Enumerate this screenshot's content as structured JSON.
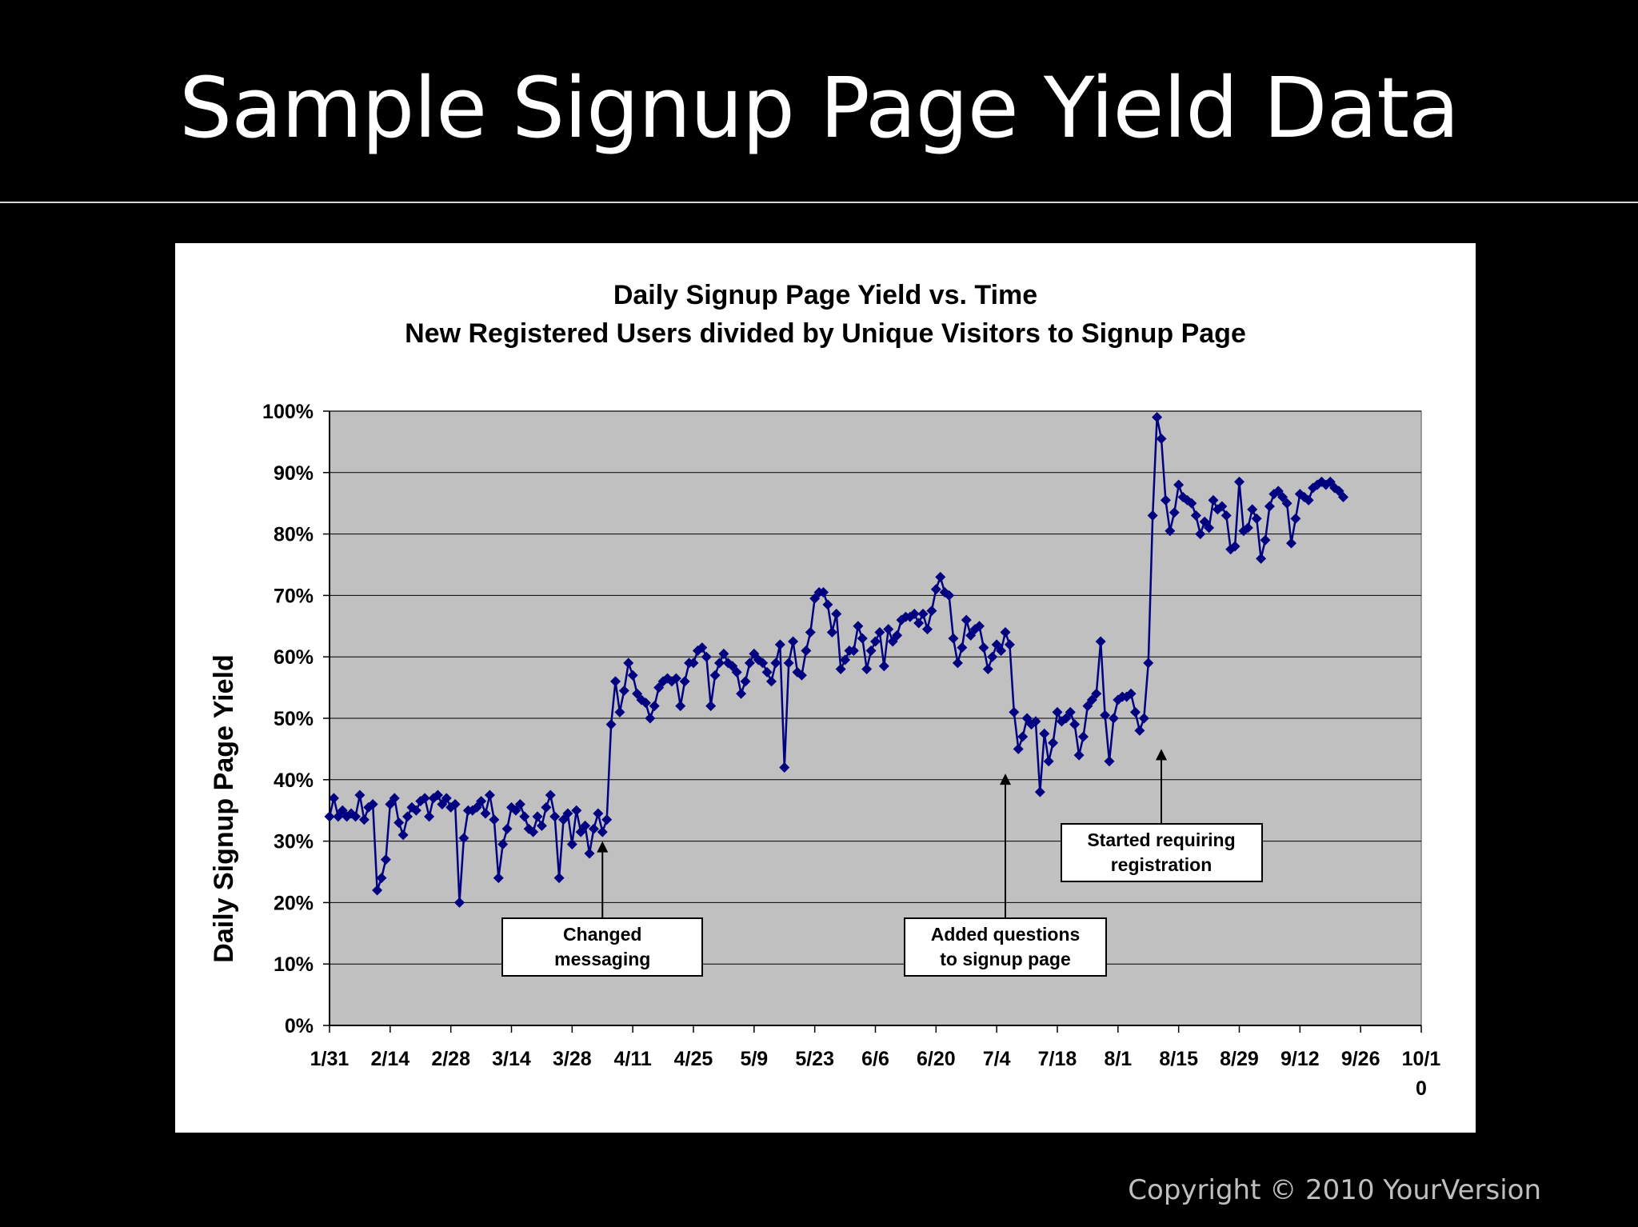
{
  "slide": {
    "title": "Sample Signup Page Yield Data",
    "copyright": "Copyright © 2010 YourVersion"
  },
  "colors": {
    "background": "#000000",
    "plot_area": "#c0c0c0",
    "series": "#000080"
  },
  "chart_data": {
    "type": "line",
    "title": "Daily Signup Page Yield vs. Time",
    "subtitle": "New Registered Users divided by Unique Visitors to Signup Page",
    "xlabel": "",
    "ylabel": "Daily Signup Page Yield",
    "x_tick_labels": [
      "1/31",
      "2/14",
      "2/28",
      "3/14",
      "3/28",
      "4/11",
      "4/25",
      "5/9",
      "5/23",
      "6/6",
      "6/20",
      "7/4",
      "7/18",
      "8/1",
      "8/15",
      "8/29",
      "9/12",
      "9/26",
      "10/1\n0"
    ],
    "y_tick_labels": [
      "0%",
      "10%",
      "20%",
      "30%",
      "40%",
      "50%",
      "60%",
      "70%",
      "80%",
      "90%",
      "100%"
    ],
    "ylim": [
      0,
      1
    ],
    "grid": true,
    "legend": false,
    "marker": "diamond",
    "series": [
      {
        "values": [
          0.34,
          0.37,
          0.34,
          0.35,
          0.34,
          0.345,
          0.34,
          0.375,
          0.335,
          0.355,
          0.36,
          0.22,
          0.24,
          0.27,
          0.36,
          0.37,
          0.33,
          0.31,
          0.34,
          0.355,
          0.35,
          0.365,
          0.37,
          0.34,
          0.37,
          0.375,
          0.36,
          0.37,
          0.355,
          0.36,
          0.2,
          0.305,
          0.35,
          0.35,
          0.355,
          0.365,
          0.345,
          0.375,
          0.335,
          0.24,
          0.295,
          0.32,
          0.355,
          0.35,
          0.36,
          0.34,
          0.32,
          0.315,
          0.34,
          0.325,
          0.355,
          0.375,
          0.34,
          0.24,
          0.335,
          0.345,
          0.295,
          0.35,
          0.315,
          0.325,
          0.28,
          0.32,
          0.345,
          0.315,
          0.335,
          0.49,
          0.56,
          0.51,
          0.545,
          0.59,
          0.57,
          0.54,
          0.53,
          0.525,
          0.5,
          0.52,
          0.55,
          0.56,
          0.565,
          0.56,
          0.565,
          0.52,
          0.56,
          0.59,
          0.59,
          0.61,
          0.615,
          0.6,
          0.52,
          0.57,
          0.59,
          0.605,
          0.59,
          0.585,
          0.575,
          0.54,
          0.56,
          0.59,
          0.605,
          0.595,
          0.59,
          0.575,
          0.56,
          0.59,
          0.62,
          0.42,
          0.59,
          0.625,
          0.575,
          0.57,
          0.61,
          0.64,
          0.695,
          0.705,
          0.705,
          0.685,
          0.64,
          0.67,
          0.58,
          0.595,
          0.61,
          0.61,
          0.65,
          0.63,
          0.58,
          0.61,
          0.625,
          0.64,
          0.585,
          0.645,
          0.625,
          0.635,
          0.66,
          0.665,
          0.665,
          0.67,
          0.655,
          0.67,
          0.645,
          0.675,
          0.71,
          0.73,
          0.705,
          0.7,
          0.63,
          0.59,
          0.615,
          0.66,
          0.635,
          0.645,
          0.65,
          0.615,
          0.58,
          0.6,
          0.62,
          0.61,
          0.64,
          0.62,
          0.51,
          0.45,
          0.47,
          0.5,
          0.49,
          0.495,
          0.38,
          0.475,
          0.43,
          0.46,
          0.51,
          0.495,
          0.5,
          0.51,
          0.49,
          0.44,
          0.47,
          0.52,
          0.53,
          0.54,
          0.625,
          0.505,
          0.43,
          0.5,
          0.53,
          0.535,
          0.535,
          0.54,
          0.51,
          0.48,
          0.5,
          0.59,
          0.83,
          0.99,
          0.955,
          0.855,
          0.805,
          0.835,
          0.88,
          0.86,
          0.855,
          0.85,
          0.83,
          0.8,
          0.82,
          0.81,
          0.855,
          0.84,
          0.845,
          0.83,
          0.775,
          0.78,
          0.885,
          0.805,
          0.81,
          0.84,
          0.825,
          0.76,
          0.79,
          0.845,
          0.865,
          0.87,
          0.86,
          0.85,
          0.785,
          0.825,
          0.865,
          0.86,
          0.855,
          0.875,
          0.88,
          0.885,
          0.88,
          0.885,
          0.875,
          0.87,
          0.86
        ]
      }
    ],
    "annotations": [
      {
        "text": "Changed\nmessaging",
        "x_index": 63,
        "y": 0.3
      },
      {
        "text": "Added questions\nto signup page",
        "x_index": 156,
        "y": 0.41
      },
      {
        "text": "Started requiring\nregistration",
        "x_index": 192,
        "y": 0.45
      }
    ]
  }
}
